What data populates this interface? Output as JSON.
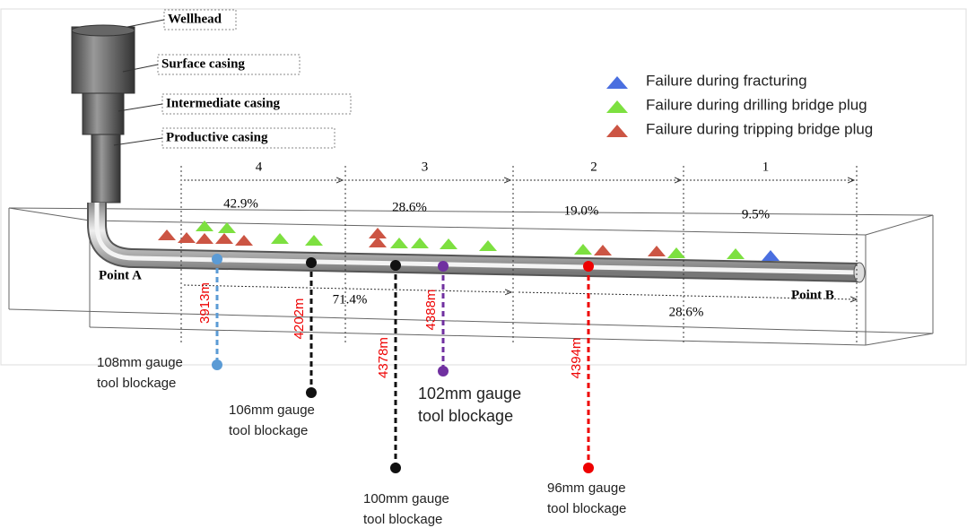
{
  "casing_labels": [
    "Wellhead",
    "Surface casing",
    "Intermediate casing",
    "Productive casing"
  ],
  "legend": [
    "Failure during fracturing",
    "Failure during drilling bridge plug",
    "Failure during tripping bridge plug"
  ],
  "sections": [
    {
      "label": "4",
      "share": "42.9%"
    },
    {
      "label": "3",
      "share": "28.6%"
    },
    {
      "label": "2",
      "share": "19.0%"
    },
    {
      "label": "1",
      "share": "9.5%"
    }
  ],
  "points": [
    "Point A",
    "Point B"
  ],
  "halves": [
    "71.4%",
    "28.6%"
  ],
  "blockages": [
    {
      "depth": "3913m",
      "label": [
        "108mm gauge",
        "tool blockage"
      ]
    },
    {
      "depth": "4202m",
      "label": [
        "106mm gauge",
        "tool blockage"
      ]
    },
    {
      "depth": "4378m",
      "label": [
        "100mm gauge",
        "tool blockage"
      ]
    },
    {
      "depth": "4388m",
      "label": [
        "102mm gauge",
        "tool blockage"
      ]
    },
    {
      "depth": "4394m",
      "label": [
        "96mm gauge",
        "tool blockage"
      ]
    }
  ]
}
